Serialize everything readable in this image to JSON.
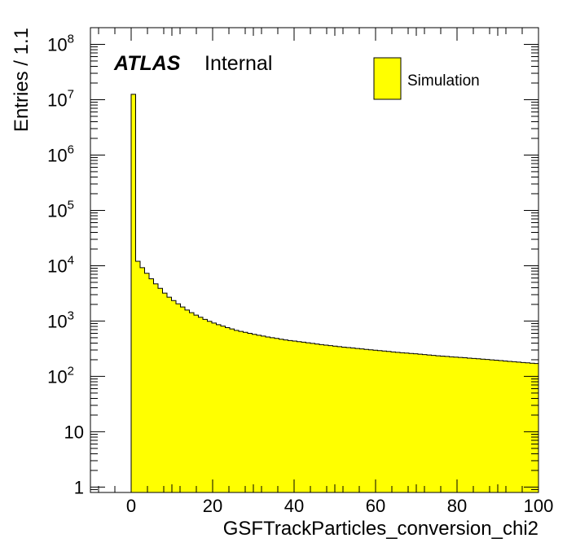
{
  "chart_data": {
    "type": "bar",
    "title": "",
    "xlabel": "GSFTrackParticles_conversion_chi2",
    "ylabel": "Entries / 1.1",
    "xlim": [
      -10,
      100
    ],
    "ylim": [
      0.8,
      200000000
    ],
    "yscale": "log",
    "grid": false,
    "legend_position": "top-right",
    "fill_color": "#ffff00",
    "line_color": "#000000",
    "bin_width": 1.1,
    "x_start": 0,
    "series": [
      {
        "name": "Simulation",
        "values": [
          12500000,
          12000,
          9200,
          7300,
          5800,
          4700,
          3900,
          3200,
          2700,
          2350,
          2050,
          1800,
          1580,
          1420,
          1280,
          1170,
          1070,
          990,
          920,
          860,
          810,
          760,
          720,
          680,
          650,
          625,
          600,
          575,
          555,
          535,
          515,
          500,
          485,
          470,
          455,
          445,
          435,
          425,
          415,
          405,
          395,
          385,
          375,
          368,
          360,
          352,
          345,
          338,
          332,
          326,
          320,
          314,
          308,
          302,
          297,
          292,
          287,
          282,
          277,
          272,
          268,
          264,
          260,
          256,
          252,
          248,
          244,
          240,
          236,
          233,
          230,
          226,
          223,
          220,
          217,
          214,
          211,
          208,
          205,
          202,
          199,
          196,
          193,
          190,
          187,
          184,
          181,
          178,
          176,
          173,
          171
        ]
      }
    ],
    "xticks": [
      {
        "value": 0,
        "label": "0"
      },
      {
        "value": 20,
        "label": "20"
      },
      {
        "value": 40,
        "label": "40"
      },
      {
        "value": 60,
        "label": "60"
      },
      {
        "value": 80,
        "label": "80"
      },
      {
        "value": 100,
        "label": "100"
      }
    ],
    "yticks": [
      {
        "value": 1,
        "base": "1",
        "exp": ""
      },
      {
        "value": 10,
        "base": "10",
        "exp": ""
      },
      {
        "value": 100,
        "base": "10",
        "exp": "2"
      },
      {
        "value": 1000,
        "base": "10",
        "exp": "3"
      },
      {
        "value": 10000,
        "base": "10",
        "exp": "4"
      },
      {
        "value": 100000,
        "base": "10",
        "exp": "5"
      },
      {
        "value": 1000000,
        "base": "10",
        "exp": "6"
      },
      {
        "value": 10000000,
        "base": "10",
        "exp": "7"
      },
      {
        "value": 100000000,
        "base": "10",
        "exp": "8"
      }
    ],
    "annotations": {
      "experiment": "ATLAS",
      "status": "Internal"
    }
  }
}
